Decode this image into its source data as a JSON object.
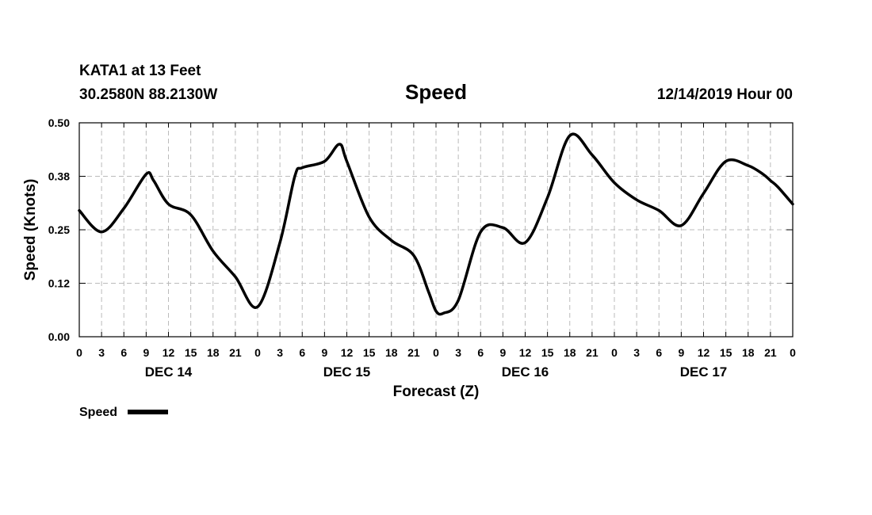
{
  "header": {
    "station": "KATA1 at 13 Feet",
    "location": "30.2580N 88.2130W",
    "title": "Speed",
    "run": "12/14/2019 Hour 00"
  },
  "legend": {
    "label": "Speed"
  },
  "colors": {
    "line": "#000000",
    "grid": "#bbbbbb",
    "background": "#ffffff"
  },
  "chart_data": {
    "type": "line",
    "title": "Speed",
    "xlabel": "Forecast (Z)",
    "ylabel": "Speed (Knots)",
    "ylim": [
      0,
      0.5
    ],
    "xlim_hours": [
      0,
      96
    ],
    "y_ticks": [
      "0.00",
      "0.12",
      "0.25",
      "0.38",
      "0.50"
    ],
    "x_tick_labels": [
      "0",
      "3",
      "6",
      "9",
      "12",
      "15",
      "18",
      "21",
      "0",
      "3",
      "6",
      "9",
      "12",
      "15",
      "18",
      "21",
      "0",
      "3",
      "6",
      "9",
      "12",
      "15",
      "18",
      "21",
      "0",
      "3",
      "6",
      "9",
      "12",
      "15",
      "18",
      "21",
      "0"
    ],
    "day_labels": [
      "DEC 14",
      "DEC 15",
      "DEC 16",
      "DEC 17"
    ],
    "grid": true,
    "legend_position": "bottom-left",
    "series": [
      {
        "name": "Speed",
        "x_hours": [
          0,
          3,
          6,
          9,
          10,
          12,
          15,
          18,
          21,
          24,
          27,
          29,
          30,
          33,
          35,
          36,
          39,
          42,
          45,
          47,
          48,
          49,
          51,
          54,
          57,
          60,
          63,
          66,
          69,
          72,
          75,
          78,
          81,
          84,
          87,
          90,
          92,
          93,
          94,
          96
        ],
        "values": [
          0.295,
          0.245,
          0.3,
          0.38,
          0.365,
          0.31,
          0.285,
          0.2,
          0.14,
          0.07,
          0.22,
          0.375,
          0.395,
          0.41,
          0.45,
          0.41,
          0.28,
          0.225,
          0.19,
          0.105,
          0.06,
          0.055,
          0.085,
          0.245,
          0.255,
          0.22,
          0.325,
          0.47,
          0.425,
          0.36,
          0.32,
          0.295,
          0.26,
          0.335,
          0.41,
          0.4,
          0.38,
          0.365,
          0.35,
          0.31
        ]
      }
    ]
  }
}
